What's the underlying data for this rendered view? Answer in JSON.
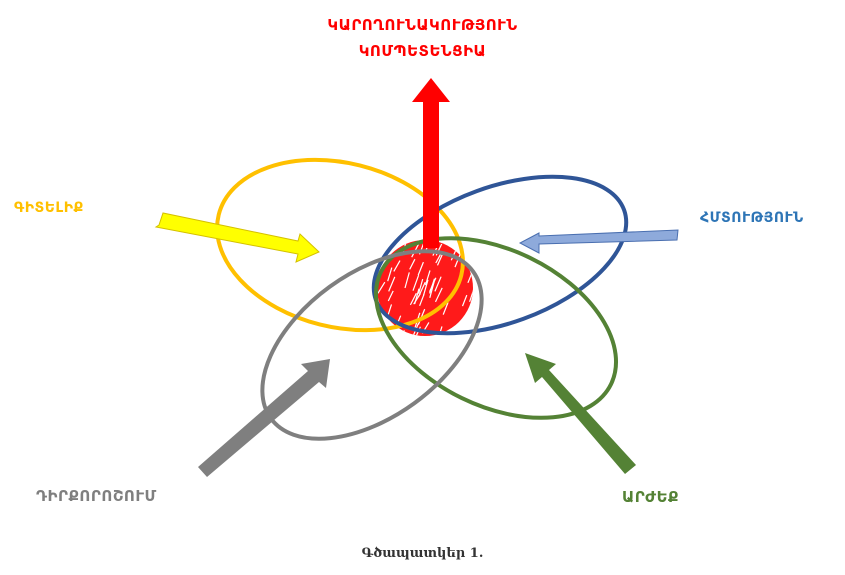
{
  "labels": {
    "top_line1": "ԿԱՐՈՂՈՒՆԱԿՈՒԹՅՈՒՆ",
    "top_line2": "ԿՈՄՊԵՏԵՆՑԻԱ",
    "knowledge": "ԳԻՏԵԼԻՔ",
    "skill": "ՀՄՏՈՒԹՅՈՒՆ",
    "attitude": "ԴԻՐՔՈՐՈՇՈՒՄ",
    "values": "ԱՐԺԵՔ"
  },
  "caption": "Գծապատկեր 1.",
  "colors": {
    "red": "#ff0000",
    "yellow": "#ffc000",
    "yellow_arrow": "#ffff00",
    "blue": "#2f5597",
    "blue_arrow": "#8eaadb",
    "green": "#548235",
    "gray": "#7f7f7f"
  }
}
